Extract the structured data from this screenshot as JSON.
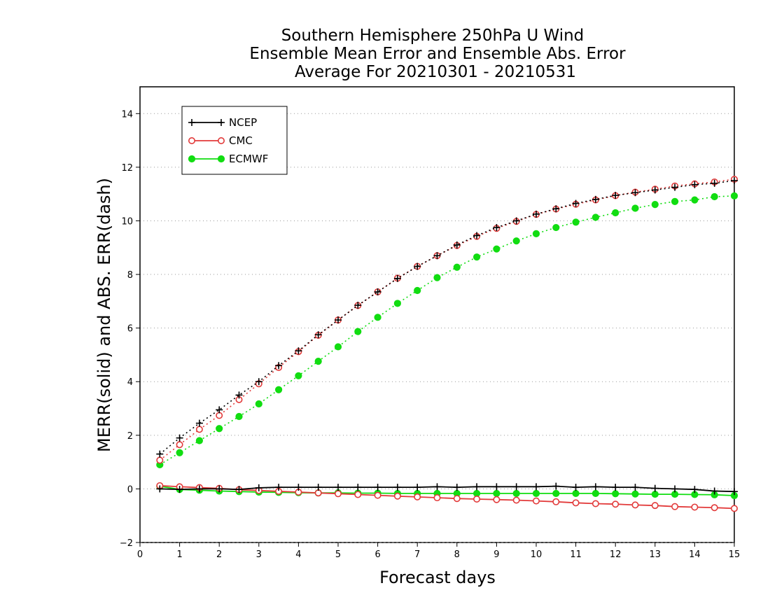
{
  "chart_data": {
    "type": "line",
    "title": [
      "Southern Hemisphere 250hPa U Wind",
      "Ensemble Mean Error and Ensemble Abs. Error",
      "Average For 20210301 - 20210531"
    ],
    "xlabel": "Forecast days",
    "ylabel": "MERR(solid) and ABS. ERR(dash)",
    "xlim": [
      0,
      15
    ],
    "ylim": [
      -2,
      15
    ],
    "xticks": [
      0,
      1,
      2,
      3,
      4,
      5,
      6,
      7,
      8,
      9,
      10,
      11,
      12,
      13,
      14,
      15
    ],
    "yticks": [
      -2,
      0,
      2,
      4,
      6,
      8,
      10,
      12,
      14
    ],
    "grid": "horizontal dotted",
    "legend_position": "top-left",
    "x": [
      0.5,
      1.0,
      1.5,
      2.0,
      2.5,
      3.0,
      3.5,
      4.0,
      4.5,
      5.0,
      5.5,
      6.0,
      6.5,
      7.0,
      7.5,
      8.0,
      8.5,
      9.0,
      9.5,
      10.0,
      10.5,
      11.0,
      11.5,
      12.0,
      12.5,
      13.0,
      13.5,
      14.0,
      14.5,
      15.0
    ],
    "series": [
      {
        "name": "NCEP",
        "color": "#000000",
        "marker": "plus",
        "merr": [
          0.0,
          -0.02,
          0.0,
          0.0,
          -0.02,
          0.04,
          0.06,
          0.06,
          0.06,
          0.06,
          0.06,
          0.06,
          0.06,
          0.06,
          0.08,
          0.06,
          0.08,
          0.08,
          0.08,
          0.08,
          0.1,
          0.06,
          0.08,
          0.06,
          0.06,
          0.02,
          0.0,
          -0.02,
          -0.08,
          -0.1
        ],
        "abs_err": [
          1.3,
          1.9,
          2.45,
          2.95,
          3.5,
          4.0,
          4.6,
          5.15,
          5.75,
          6.3,
          6.85,
          7.35,
          7.85,
          8.3,
          8.7,
          9.1,
          9.45,
          9.75,
          10.0,
          10.25,
          10.45,
          10.65,
          10.8,
          10.95,
          11.05,
          11.15,
          11.25,
          11.35,
          11.4,
          11.5
        ]
      },
      {
        "name": "CMC",
        "color": "#e23a3a",
        "marker": "open-circle",
        "merr": [
          0.12,
          0.08,
          0.05,
          0.02,
          -0.03,
          -0.06,
          -0.09,
          -0.12,
          -0.15,
          -0.18,
          -0.21,
          -0.24,
          -0.27,
          -0.3,
          -0.33,
          -0.36,
          -0.38,
          -0.4,
          -0.42,
          -0.45,
          -0.48,
          -0.52,
          -0.55,
          -0.57,
          -0.6,
          -0.62,
          -0.66,
          -0.68,
          -0.7,
          -0.73
        ],
        "abs_err": [
          1.07,
          1.65,
          2.22,
          2.74,
          3.33,
          3.92,
          4.53,
          5.12,
          5.73,
          6.3,
          6.84,
          7.35,
          7.86,
          8.3,
          8.7,
          9.08,
          9.42,
          9.72,
          9.98,
          10.24,
          10.44,
          10.62,
          10.78,
          10.94,
          11.07,
          11.18,
          11.3,
          11.38,
          11.45,
          11.55
        ]
      },
      {
        "name": "ECMWF",
        "color": "#11dd11",
        "marker": "filled-circle",
        "merr": [
          0.1,
          -0.02,
          -0.05,
          -0.08,
          -0.1,
          -0.12,
          -0.13,
          -0.14,
          -0.15,
          -0.15,
          -0.16,
          -0.16,
          -0.17,
          -0.17,
          -0.17,
          -0.17,
          -0.17,
          -0.17,
          -0.17,
          -0.17,
          -0.17,
          -0.17,
          -0.17,
          -0.18,
          -0.19,
          -0.2,
          -0.2,
          -0.21,
          -0.22,
          -0.25
        ],
        "abs_err": [
          0.9,
          1.35,
          1.8,
          2.25,
          2.7,
          3.17,
          3.7,
          4.22,
          4.76,
          5.3,
          5.87,
          6.4,
          6.92,
          7.4,
          7.88,
          8.27,
          8.65,
          8.95,
          9.25,
          9.52,
          9.75,
          9.95,
          10.13,
          10.3,
          10.47,
          10.61,
          10.72,
          10.78,
          10.9,
          10.93
        ]
      }
    ]
  }
}
